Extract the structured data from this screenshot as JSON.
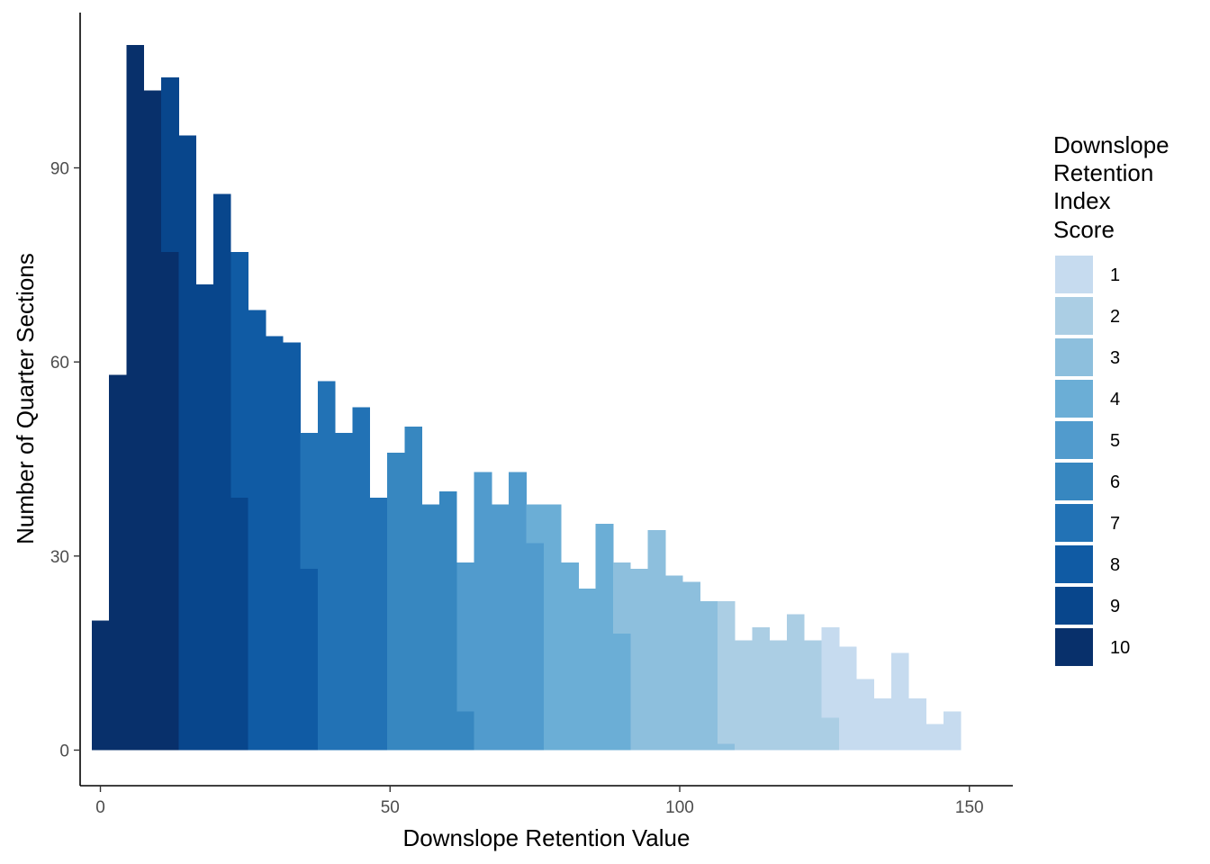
{
  "chart_data": {
    "type": "bar",
    "subtype": "stacked-histogram",
    "title": "",
    "xlabel": "Downslope Retention Value",
    "ylabel": "Number of Quarter Sections",
    "xlim": [
      -3.5,
      157.5
    ],
    "ylim": [
      -5.5,
      114
    ],
    "x_ticks": [
      0,
      50,
      100,
      150
    ],
    "x_tick_labels": [
      "0",
      "50",
      "100",
      "150"
    ],
    "y_ticks": [
      0,
      30,
      60,
      90
    ],
    "y_tick_labels": [
      "0",
      "30",
      "60",
      "90"
    ],
    "grid": false,
    "bin_width": 3,
    "legend": {
      "title_lines": [
        "Downslope",
        "Retention",
        "Index",
        "Score"
      ],
      "placement": "right",
      "entries": [
        {
          "label": "1",
          "color": "#c6dbef"
        },
        {
          "label": "2",
          "color": "#abcee4"
        },
        {
          "label": "3",
          "color": "#8dbfdd"
        },
        {
          "label": "4",
          "color": "#6baed6"
        },
        {
          "label": "5",
          "color": "#519bcd"
        },
        {
          "label": "6",
          "color": "#3787c0"
        },
        {
          "label": "7",
          "color": "#2272b5"
        },
        {
          "label": "8",
          "color": "#105ba4"
        },
        {
          "label": "9",
          "color": "#08468c"
        },
        {
          "label": "10",
          "color": "#08306b"
        }
      ]
    },
    "series": [
      {
        "name": "10",
        "color": "#08306b",
        "bins": [
          {
            "x_start": -1.5,
            "x_end": 1.5,
            "count": 20
          },
          {
            "x_start": 1.5,
            "x_end": 4.5,
            "count": 58
          },
          {
            "x_start": 4.5,
            "x_end": 7.5,
            "count": 109
          },
          {
            "x_start": 7.5,
            "x_end": 10.5,
            "count": 102
          },
          {
            "x_start": 10.5,
            "x_end": 13.5,
            "count": 77
          }
        ]
      },
      {
        "name": "9",
        "color": "#08468c",
        "bins": [
          {
            "x_start": 10.5,
            "x_end": 13.5,
            "count": 27
          },
          {
            "x_start": 13.5,
            "x_end": 16.5,
            "count": 95
          },
          {
            "x_start": 16.5,
            "x_end": 19.5,
            "count": 72
          },
          {
            "x_start": 19.5,
            "x_end": 22.5,
            "count": 86
          },
          {
            "x_start": 22.5,
            "x_end": 25.5,
            "count": 39
          }
        ]
      },
      {
        "name": "8",
        "color": "#105ba4",
        "bins": [
          {
            "x_start": 22.5,
            "x_end": 25.5,
            "count": 38
          },
          {
            "x_start": 25.5,
            "x_end": 28.5,
            "count": 68
          },
          {
            "x_start": 28.5,
            "x_end": 31.5,
            "count": 64
          },
          {
            "x_start": 31.5,
            "x_end": 34.5,
            "count": 63
          },
          {
            "x_start": 34.5,
            "x_end": 37.5,
            "count": 28
          }
        ]
      },
      {
        "name": "7",
        "color": "#2272b5",
        "bins": [
          {
            "x_start": 34.5,
            "x_end": 37.5,
            "count": 21
          },
          {
            "x_start": 37.5,
            "x_end": 40.5,
            "count": 57
          },
          {
            "x_start": 40.5,
            "x_end": 43.5,
            "count": 49
          },
          {
            "x_start": 43.5,
            "x_end": 46.5,
            "count": 53
          },
          {
            "x_start": 46.5,
            "x_end": 49.5,
            "count": 39
          }
        ]
      },
      {
        "name": "6",
        "color": "#3787c0",
        "bins": [
          {
            "x_start": 49.5,
            "x_end": 52.5,
            "count": 46
          },
          {
            "x_start": 52.5,
            "x_end": 55.5,
            "count": 50
          },
          {
            "x_start": 55.5,
            "x_end": 58.5,
            "count": 38
          },
          {
            "x_start": 58.5,
            "x_end": 61.5,
            "count": 40
          },
          {
            "x_start": 61.5,
            "x_end": 64.5,
            "count": 6
          }
        ]
      },
      {
        "name": "5",
        "color": "#519bcd",
        "bins": [
          {
            "x_start": 61.5,
            "x_end": 64.5,
            "count": 23
          },
          {
            "x_start": 64.5,
            "x_end": 67.5,
            "count": 43
          },
          {
            "x_start": 67.5,
            "x_end": 70.5,
            "count": 38
          },
          {
            "x_start": 70.5,
            "x_end": 73.5,
            "count": 43
          },
          {
            "x_start": 73.5,
            "x_end": 76.5,
            "count": 32
          }
        ]
      },
      {
        "name": "4",
        "color": "#6baed6",
        "bins": [
          {
            "x_start": 73.5,
            "x_end": 76.5,
            "count": 6
          },
          {
            "x_start": 76.5,
            "x_end": 79.5,
            "count": 38
          },
          {
            "x_start": 79.5,
            "x_end": 82.5,
            "count": 29
          },
          {
            "x_start": 82.5,
            "x_end": 85.5,
            "count": 25
          },
          {
            "x_start": 85.5,
            "x_end": 88.5,
            "count": 35
          },
          {
            "x_start": 88.5,
            "x_end": 91.5,
            "count": 18
          }
        ]
      },
      {
        "name": "3",
        "color": "#8dbfdd",
        "bins": [
          {
            "x_start": 88.5,
            "x_end": 91.5,
            "count": 11
          },
          {
            "x_start": 91.5,
            "x_end": 94.5,
            "count": 28
          },
          {
            "x_start": 94.5,
            "x_end": 97.5,
            "count": 34
          },
          {
            "x_start": 97.5,
            "x_end": 100.5,
            "count": 27
          },
          {
            "x_start": 100.5,
            "x_end": 103.5,
            "count": 26
          },
          {
            "x_start": 103.5,
            "x_end": 106.5,
            "count": 23
          },
          {
            "x_start": 106.5,
            "x_end": 109.5,
            "count": 1
          }
        ]
      },
      {
        "name": "2",
        "color": "#abcee4",
        "bins": [
          {
            "x_start": 106.5,
            "x_end": 109.5,
            "count": 22
          },
          {
            "x_start": 109.5,
            "x_end": 112.5,
            "count": 17
          },
          {
            "x_start": 112.5,
            "x_end": 115.5,
            "count": 19
          },
          {
            "x_start": 115.5,
            "x_end": 118.5,
            "count": 17
          },
          {
            "x_start": 118.5,
            "x_end": 121.5,
            "count": 21
          },
          {
            "x_start": 121.5,
            "x_end": 124.5,
            "count": 17
          },
          {
            "x_start": 124.5,
            "x_end": 127.5,
            "count": 5
          }
        ]
      },
      {
        "name": "1",
        "color": "#c6dbef",
        "bins": [
          {
            "x_start": 124.5,
            "x_end": 127.5,
            "count": 14
          },
          {
            "x_start": 127.5,
            "x_end": 130.5,
            "count": 16
          },
          {
            "x_start": 130.5,
            "x_end": 133.5,
            "count": 11
          },
          {
            "x_start": 133.5,
            "x_end": 136.5,
            "count": 8
          },
          {
            "x_start": 136.5,
            "x_end": 139.5,
            "count": 15
          },
          {
            "x_start": 139.5,
            "x_end": 142.5,
            "count": 8
          },
          {
            "x_start": 142.5,
            "x_end": 145.5,
            "count": 4
          },
          {
            "x_start": 145.5,
            "x_end": 148.5,
            "count": 6
          }
        ]
      }
    ]
  }
}
